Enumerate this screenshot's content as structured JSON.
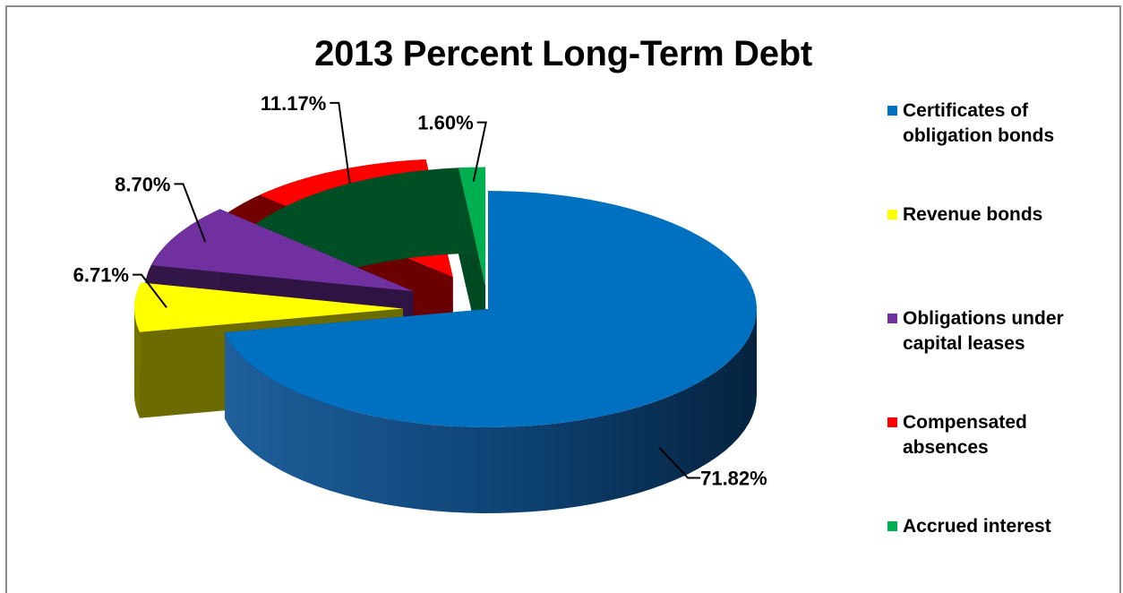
{
  "chart_data": {
    "type": "pie",
    "title": "2013 Percent Long-Term Debt",
    "legend_position": "right",
    "slices": [
      {
        "name": "Certificates of obligation bonds",
        "value": 71.82,
        "label": "71.82%",
        "color": "#0070c0"
      },
      {
        "name": "Revenue bonds",
        "value": 6.71,
        "label": "6.71%",
        "color": "#ffff00"
      },
      {
        "name": "Obligations under capital leases",
        "value": 8.7,
        "label": "8.70%",
        "color": "#7030a0"
      },
      {
        "name": "Compensated absences",
        "value": 11.17,
        "label": "11.17%",
        "color": "#ff0000"
      },
      {
        "name": "Accrued interest",
        "value": 1.6,
        "label": "1.60%",
        "color": "#00b050"
      }
    ]
  },
  "legend": [
    {
      "label_line1": "Certificates",
      "label_line2": "of obligation bonds",
      "color": "#0070c0"
    },
    {
      "label_line1": "Revenue bonds",
      "label_line2": "",
      "color": "#ffff00"
    },
    {
      "label_line1": "Obligations under",
      "label_line2": "capital leases",
      "color": "#7030a0"
    },
    {
      "label_line1": "Compensated",
      "label_line2": "absences",
      "color": "#ff0000"
    },
    {
      "label_line1": "Accrued interest",
      "label_line2": "",
      "color": "#00b050"
    }
  ]
}
